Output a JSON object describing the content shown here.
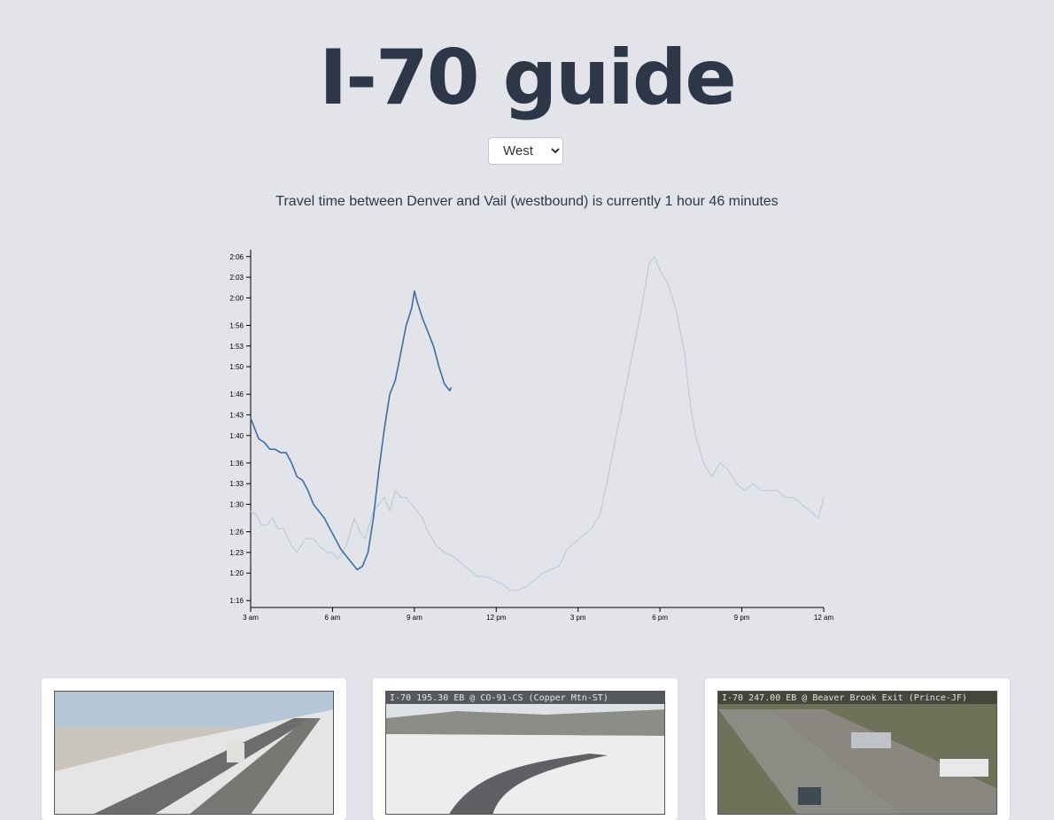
{
  "header": {
    "title": "I-70 guide"
  },
  "direction": {
    "selected": "West"
  },
  "status": {
    "text": "Travel time between Denver and Vail (westbound) is currently 1 hour 46 minutes"
  },
  "colors": {
    "today": "#3a6ea5",
    "typical": "#c3cedb",
    "axis": "#000000"
  },
  "chart_data": {
    "type": "line",
    "xlabel": "",
    "ylabel": "",
    "x_ticks": [
      "3 am",
      "6 am",
      "9 am",
      "12 pm",
      "3 pm",
      "6 pm",
      "9 pm",
      "12 am"
    ],
    "y_ticks": [
      "1:16",
      "1:20",
      "1:23",
      "1:26",
      "1:30",
      "1:33",
      "1:36",
      "1:40",
      "1:43",
      "1:46",
      "1:50",
      "1:53",
      "1:56",
      "2:00",
      "2:03",
      "2:06"
    ],
    "x_range_hours": [
      3,
      24
    ],
    "y_range_minutes": [
      75,
      127
    ],
    "series": [
      {
        "name": "",
        "role": "today",
        "points": [
          [
            3.0,
            102.5
          ],
          [
            3.15,
            101
          ],
          [
            3.3,
            99.5
          ],
          [
            3.5,
            99
          ],
          [
            3.7,
            98
          ],
          [
            3.9,
            98
          ],
          [
            4.1,
            97.5
          ],
          [
            4.3,
            97.5
          ],
          [
            4.5,
            96
          ],
          [
            4.7,
            94
          ],
          [
            4.9,
            93.5
          ],
          [
            5.1,
            92
          ],
          [
            5.3,
            90
          ],
          [
            5.5,
            89
          ],
          [
            5.7,
            88
          ],
          [
            5.9,
            86.5
          ],
          [
            6.1,
            85
          ],
          [
            6.3,
            83.5
          ],
          [
            6.5,
            82.5
          ],
          [
            6.7,
            81.5
          ],
          [
            6.9,
            80.5
          ],
          [
            7.1,
            81
          ],
          [
            7.3,
            83
          ],
          [
            7.5,
            88
          ],
          [
            7.7,
            95
          ],
          [
            7.9,
            101
          ],
          [
            8.1,
            106
          ],
          [
            8.3,
            108
          ],
          [
            8.5,
            112
          ],
          [
            8.7,
            116
          ],
          [
            8.9,
            118.5
          ],
          [
            9.0,
            121
          ],
          [
            9.1,
            119.5
          ],
          [
            9.3,
            117
          ],
          [
            9.5,
            115
          ],
          [
            9.7,
            113
          ],
          [
            9.9,
            110
          ],
          [
            10.1,
            107.5
          ],
          [
            10.3,
            106.5
          ],
          [
            10.35,
            107
          ]
        ]
      },
      {
        "name": "",
        "role": "typical",
        "points": [
          [
            3.0,
            89
          ],
          [
            3.2,
            88.5
          ],
          [
            3.4,
            87
          ],
          [
            3.6,
            87
          ],
          [
            3.8,
            88
          ],
          [
            4.0,
            86.5
          ],
          [
            4.2,
            86.5
          ],
          [
            4.5,
            84
          ],
          [
            4.7,
            83
          ],
          [
            5.0,
            85
          ],
          [
            5.3,
            85
          ],
          [
            5.5,
            84
          ],
          [
            5.8,
            83
          ],
          [
            6.0,
            83
          ],
          [
            6.2,
            82
          ],
          [
            6.5,
            84
          ],
          [
            6.8,
            88
          ],
          [
            7.0,
            86
          ],
          [
            7.2,
            85
          ],
          [
            7.5,
            89
          ],
          [
            7.7,
            90
          ],
          [
            7.9,
            91
          ],
          [
            8.1,
            89
          ],
          [
            8.3,
            92
          ],
          [
            8.5,
            91
          ],
          [
            8.7,
            91
          ],
          [
            8.9,
            90
          ],
          [
            9.1,
            89
          ],
          [
            9.3,
            88
          ],
          [
            9.5,
            86
          ],
          [
            9.8,
            84
          ],
          [
            10.1,
            83
          ],
          [
            10.4,
            82.5
          ],
          [
            10.7,
            81.5
          ],
          [
            11.0,
            80.5
          ],
          [
            11.3,
            79.5
          ],
          [
            11.6,
            79.5
          ],
          [
            11.9,
            79
          ],
          [
            12.2,
            78.5
          ],
          [
            12.5,
            77.5
          ],
          [
            12.8,
            77.5
          ],
          [
            13.1,
            78
          ],
          [
            13.4,
            79
          ],
          [
            13.7,
            80
          ],
          [
            14.0,
            80.5
          ],
          [
            14.3,
            81
          ],
          [
            14.6,
            83.5
          ],
          [
            14.9,
            84.5
          ],
          [
            15.2,
            85.5
          ],
          [
            15.5,
            86.5
          ],
          [
            15.8,
            88.5
          ],
          [
            16.1,
            94
          ],
          [
            16.4,
            100
          ],
          [
            16.7,
            106
          ],
          [
            17.0,
            112
          ],
          [
            17.3,
            118
          ],
          [
            17.6,
            125
          ],
          [
            17.8,
            126
          ],
          [
            18.0,
            124
          ],
          [
            18.3,
            122
          ],
          [
            18.6,
            118
          ],
          [
            18.9,
            112
          ],
          [
            19.1,
            105
          ],
          [
            19.3,
            100
          ],
          [
            19.6,
            96
          ],
          [
            19.9,
            94
          ],
          [
            20.2,
            96
          ],
          [
            20.5,
            95
          ],
          [
            20.8,
            93
          ],
          [
            21.1,
            92
          ],
          [
            21.4,
            93
          ],
          [
            21.7,
            92
          ],
          [
            22.0,
            92
          ],
          [
            22.3,
            92
          ],
          [
            22.6,
            91
          ],
          [
            22.9,
            91
          ],
          [
            23.2,
            90
          ],
          [
            23.5,
            89
          ],
          [
            23.8,
            88
          ],
          [
            24.0,
            91
          ]
        ]
      }
    ]
  },
  "cameras": [
    {
      "caption": ""
    },
    {
      "caption": "I-70  195.30 EB @ CO-91-CS (Copper Mtn-ST)"
    },
    {
      "caption": "I-70  247.00 EB @ Beaver Brook Exit (Prince-JF)"
    }
  ]
}
